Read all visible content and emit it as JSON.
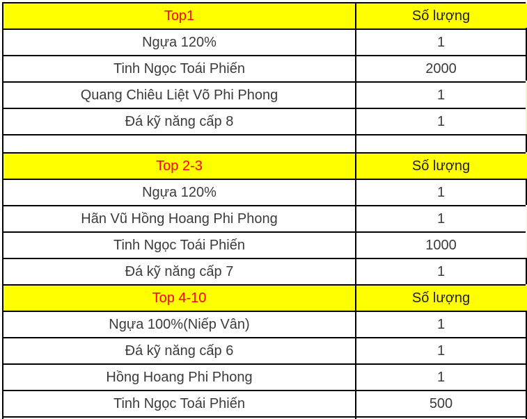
{
  "colors": {
    "header_bg": "#ffff00",
    "header_title_text": "#ff0000",
    "header_qty_text": "#1f1f1f",
    "body_text": "#3b3b3b",
    "border": "#000000",
    "page_bg": "#ffffff"
  },
  "rows": [
    {
      "type": "section_header",
      "label": "Top1",
      "qty": "Số lượng"
    },
    {
      "type": "item",
      "label": "Ngựa 120%",
      "qty": "1"
    },
    {
      "type": "item",
      "label": "Tinh Ngọc Toái Phiến",
      "qty": "2000"
    },
    {
      "type": "item",
      "label": "Quang Chiêu Liệt Võ Phi Phong",
      "qty": "1"
    },
    {
      "type": "item",
      "label": "Đá kỹ năng cấp 8",
      "qty": "1"
    },
    {
      "type": "spacer",
      "label": "",
      "qty": ""
    },
    {
      "type": "section_header",
      "label": "Top 2-3",
      "qty": "Số lượng"
    },
    {
      "type": "item",
      "label": "Ngựa 120%",
      "qty": "1"
    },
    {
      "type": "item",
      "label": "Hãn Vũ Hồng Hoang Phi Phong",
      "qty": "1"
    },
    {
      "type": "item",
      "label": "Tinh Ngọc Toái Phiến",
      "qty": "1000"
    },
    {
      "type": "item",
      "label": "Đá kỹ năng cấp 7",
      "qty": "1"
    },
    {
      "type": "section_header",
      "label": "Top 4-10",
      "qty": "Số lượng"
    },
    {
      "type": "item",
      "label": "Ngựa 100%(Niếp Vân)",
      "qty": "1"
    },
    {
      "type": "item",
      "label": "Đá kỹ năng cấp 6",
      "qty": "1"
    },
    {
      "type": "item",
      "label": "Hồng Hoang Phi Phong",
      "qty": "1"
    },
    {
      "type": "item",
      "label": "Tinh Ngọc Toái Phiến",
      "qty": "500"
    }
  ]
}
